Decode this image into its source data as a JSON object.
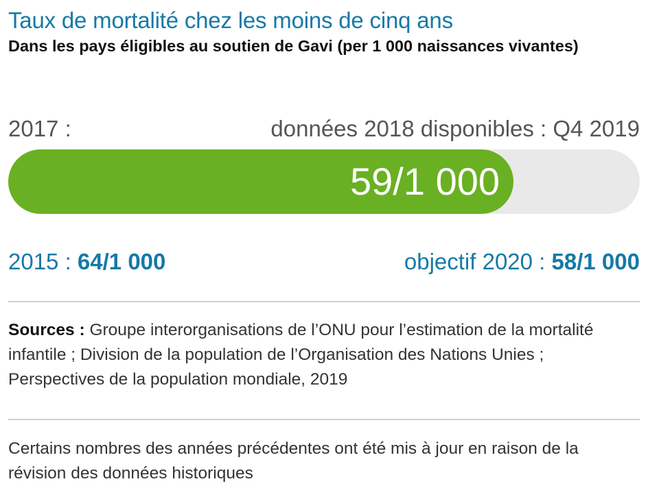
{
  "chart_data": {
    "type": "progress",
    "title": "Taux de mortalité chez les moins de cinq ans",
    "subtitle": "Dans les pays éligibles au soutien de Gavi (per 1 000 naissances vivantes)",
    "current_label": "2017 :",
    "next_data_note": "données 2018 disponibles : Q4 2019",
    "current_value_text": "59/1 000",
    "fill_fraction": 0.8,
    "baseline": {
      "label": "2015 :",
      "value_text": "64/1 000"
    },
    "target": {
      "label": "objectif 2020 :",
      "value_text": "58/1 000"
    },
    "colors": {
      "fill": "#6ab023",
      "track": "#e9e9e9",
      "accent": "#1679a6"
    }
  },
  "sources": {
    "label": "Sources :",
    "text": " Groupe interorganisations de l’ONU pour l’estimation de la mortalité infantile ; Division de la population de l’Organisation des Nations Unies ; Perspectives de la population mondiale, 2019"
  },
  "note": "Certains nombres des années précédentes ont été mis à jour en raison de la révision des données historiques"
}
